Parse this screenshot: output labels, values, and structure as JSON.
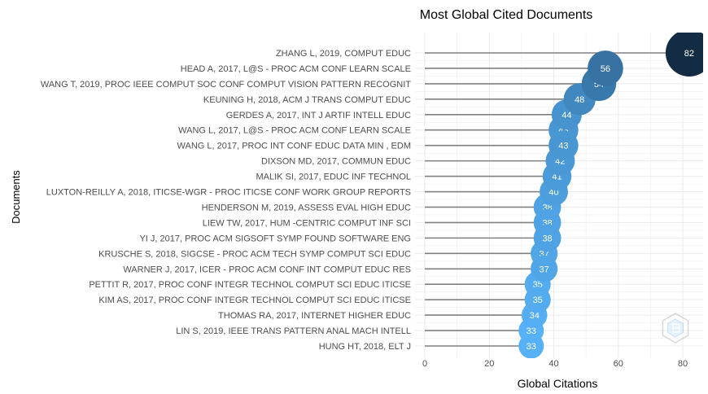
{
  "chart_data": {
    "type": "lollipop",
    "title": "Most Global Cited Documents",
    "xlabel": "Global Citations",
    "ylabel": "Documents",
    "xlim": [
      0,
      86
    ],
    "xticks": [
      0,
      20,
      40,
      60,
      80
    ],
    "grid": true,
    "categories": [
      "ZHANG L, 2019, COMPUT EDUC",
      "HEAD A, 2017, L@S - PROC ACM CONF LEARN SCALE",
      "WANG T, 2019, PROC IEEE COMPUT SOC CONF COMPUT VISION PATTERN RECOGNIT",
      "KEUNING H, 2018, ACM J TRANS COMPUT EDUC",
      "GERDES A, 2017, INT J ARTIF INTELL EDUC",
      "WANG L, 2017, L@S - PROC ACM CONF LEARN SCALE",
      "WANG L, 2017, PROC INT CONF EDUC DATA MIN , EDM",
      "DIXSON MD, 2017, COMMUN EDUC",
      "MALIK SI, 2017, EDUC INF TECHNOL",
      "LUXTON-REILLY A, 2018, ITICSE-WGR - PROC ITICSE CONF WORK GROUP REPORTS",
      "HENDERSON M, 2019, ASSESS EVAL HIGH EDUC",
      "LIEW TW, 2017, HUM -CENTRIC COMPUT INF SCI",
      "YI J, 2017, PROC ACM SIGSOFT SYMP FOUND SOFTWARE ENG",
      "KRUSCHE S, 2018, SIGCSE - PROC ACM TECH SYMP COMPUT SCI EDUC",
      "WARNER J, 2017, ICER - PROC ACM CONF INT COMPUT EDUC RES",
      "PETTIT R, 2017, PROC CONF INTEGR TECHNOL COMPUT SCI EDUC ITICSE",
      "KIM AS, 2017, PROC CONF INTEGR TECHNOL COMPUT SCI EDUC ITICSE",
      "THOMAS RA, 2017, INTERNET HIGHER EDUC",
      "LIN S, 2019, IEEE TRANS PATTERN ANAL MACH INTELL",
      "HUNG HT, 2018, ELT J"
    ],
    "values": [
      82,
      56,
      54,
      48,
      44,
      43,
      43,
      42,
      41,
      40,
      38,
      38,
      38,
      37,
      37,
      35,
      35,
      34,
      33,
      33
    ],
    "colors": {
      "low": "#56B1F7",
      "high": "#132B43",
      "stem": "#808080",
      "grid": "#EBEBEB"
    }
  },
  "watermark_icon": "bibliometrix-hexagon-logo-icon"
}
